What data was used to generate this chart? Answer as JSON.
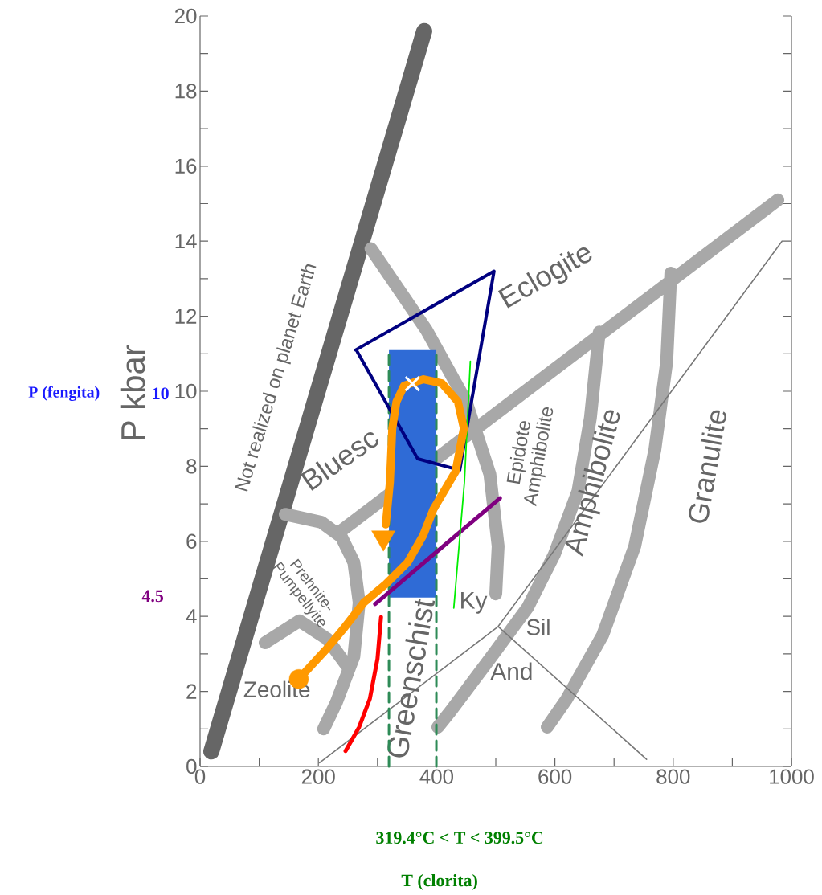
{
  "chart_data": {
    "type": "line",
    "ylabel": "P kbar",
    "xlim": [
      0,
      1000
    ],
    "ylim": [
      0,
      20
    ],
    "xticks": [
      0,
      {
        "value": 100,
        "label": null
      },
      200,
      {
        "value": 300,
        "label": null
      },
      400,
      {
        "value": 500,
        "label": null
      },
      600,
      {
        "value": 700,
        "label": null
      },
      800,
      {
        "value": 900,
        "label": null
      },
      1000
    ],
    "yticks": [
      0,
      {
        "value": 1,
        "label": null
      },
      2,
      {
        "value": 3,
        "label": null
      },
      4,
      {
        "value": 5,
        "label": null
      },
      6,
      {
        "value": 7,
        "label": null
      },
      8,
      {
        "value": 9,
        "label": null
      },
      10,
      {
        "value": 11,
        "label": null
      },
      12,
      {
        "value": 13,
        "label": null
      },
      14,
      {
        "value": 15,
        "label": null
      },
      16,
      {
        "value": 17,
        "label": null
      },
      18,
      {
        "value": 19,
        "label": null
      },
      20
    ],
    "series": [
      {
        "color": "#666666",
        "x": [
          19,
          379
        ],
        "values": [
          0.4,
          19.6
        ]
      },
      {
        "color": "#a8a8a8",
        "x": [
          232,
          977,
          null,
          289,
          382,
          450,
          490,
          504,
          500,
          null,
          675,
          660,
          639,
          599,
          554,
          490,
          423,
          402,
          null,
          796,
          789,
          769,
          735,
          681,
          620,
          587,
          null,
          144,
          205,
          239,
          260,
          269,
          260,
          230,
          209,
          null,
          110,
          168,
          215,
          252
        ],
        "values": [
          6.2,
          15.1,
          null,
          13.8,
          11.65,
          9.72,
          7.79,
          5.87,
          4.6,
          null,
          11.58,
          9.29,
          7.34,
          5.65,
          4.24,
          2.87,
          1.46,
          1.05,
          null,
          13.15,
          10.79,
          8.44,
          5.87,
          3.51,
          1.8,
          1.05,
          null,
          6.72,
          6.51,
          6.12,
          5.44,
          4.37,
          2.93,
          1.69,
          1.0,
          null,
          3.3,
          3.88,
          3.4,
          2.6
        ]
      },
      {
        "color": "#777777",
        "x": [
          202,
          504,
          984,
          null,
          504,
          755
        ],
        "values": [
          0.1,
          3.73,
          14.0,
          null,
          3.73,
          0.19
        ]
      },
      {
        "type": "area",
        "color": "#2f6bd6",
        "x": [
          319.4,
          399.5,
          399.5,
          319.4
        ],
        "values": [
          11.1,
          11.1,
          4.5,
          4.5
        ]
      },
      {
        "color": "#2e8b57",
        "line_style": "dashed",
        "x": [
          319.4,
          319.4
        ],
        "values": [
          0,
          11.1
        ]
      },
      {
        "color": "#2e8b57",
        "line_style": "dashed",
        "x": [
          399.5,
          399.5
        ],
        "values": [
          0,
          11.1
        ]
      },
      {
        "color": "#000080",
        "x": [
          263,
          497,
          439,
          368,
          266
        ],
        "values": [
          11.1,
          13.2,
          7.9,
          8.2,
          11.05
        ]
      },
      {
        "color": "#800080",
        "x": [
          296,
          507
        ],
        "values": [
          4.33,
          7.15
        ]
      },
      {
        "color": "#00ee00",
        "x": [
          457,
          447,
          429
        ],
        "values": [
          10.8,
          7.58,
          4.22
        ]
      },
      {
        "color": "#ff0000",
        "x": [
          306,
          300,
          287,
          269,
          246
        ],
        "values": [
          3.98,
          2.87,
          1.8,
          1.05,
          0.41
        ]
      },
      {
        "color": "#ff9900",
        "x": [
          167,
          215,
          242,
          277,
          314,
          351,
          377,
          395,
          432,
          446,
          436,
          409,
          378,
          345,
          332,
          325,
          321,
          314
        ],
        "values": [
          2.33,
          3.15,
          3.66,
          4.37,
          4.86,
          5.44,
          6.15,
          6.87,
          7.86,
          9.01,
          9.72,
          10.21,
          10.32,
          10.15,
          9.72,
          9.01,
          7.58,
          6.45
        ]
      },
      {
        "type": "scatter",
        "color": "#ff9900",
        "marker": "circle",
        "x": [
          167
        ],
        "values": [
          2.33
        ]
      },
      {
        "type": "scatter",
        "color": "#ff9900",
        "marker": "triangle",
        "x": [
          310
        ],
        "values": [
          6.1
        ]
      },
      {
        "type": "scatter",
        "color": "#ffffff",
        "marker": "cross",
        "x": [
          359
        ],
        "values": [
          10.2
        ]
      }
    ],
    "annotations": [
      "Not realized on planet Earth",
      "Eclogite",
      "Bluesc",
      "Greenschist",
      "Epidote Amphibolite",
      "Amphibolite",
      "Granulite",
      "Prehnite-Pumpellyite",
      "Zeolite",
      "Ky",
      "Sil",
      "And",
      "P (fengita)",
      "10",
      "4.5",
      "319.4°C < T < 399.5°C",
      "T (clorita)"
    ]
  }
}
